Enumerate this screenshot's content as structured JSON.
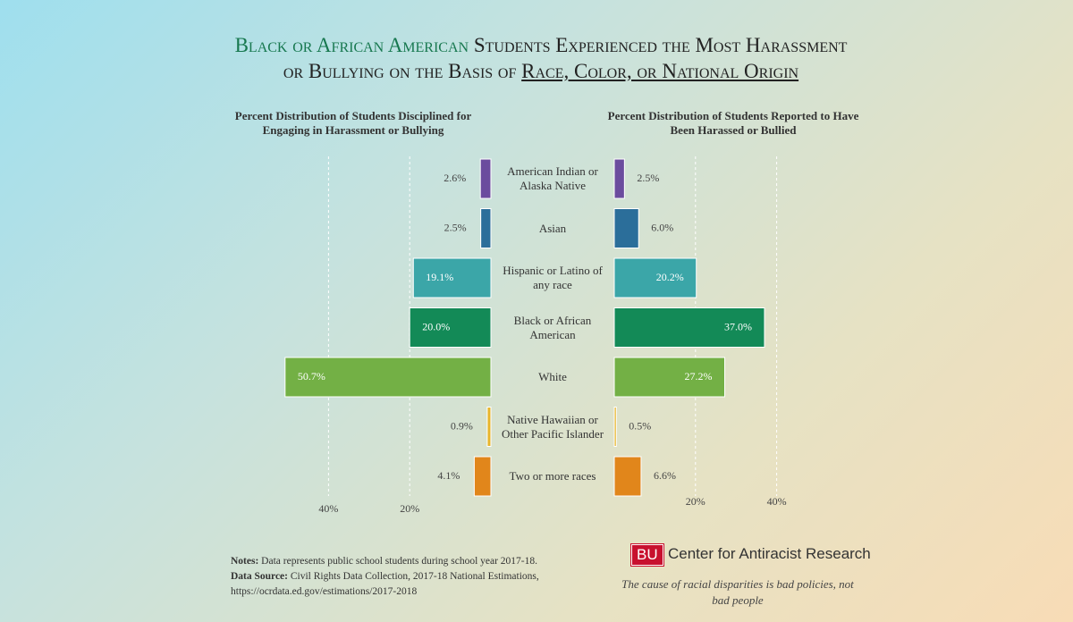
{
  "chart_data": {
    "type": "butterfly",
    "title": [
      "Black or African American",
      "Students Experienced the Most Harassment",
      "or Bullying on the Basis of",
      "Race, Color, or National Origin"
    ],
    "categories": [
      "American Indian or Alaska Native",
      "Asian",
      "Hispanic or Latino of any race",
      "Black or African American",
      "White",
      "Native Hawaiian or Other Pacific Islander",
      "Two or more races"
    ],
    "colors": [
      "#6b4c9e",
      "#2b6e9a",
      "#3ba6a8",
      "#138a57",
      "#73b045",
      "#e7b52c",
      "#e1861b"
    ],
    "grid": true,
    "series": [
      {
        "name": "Percent Distribution of Students Disciplined for Engaging in Harassment or Bullying",
        "values": [
          2.6,
          2.5,
          19.1,
          20.0,
          50.7,
          0.9,
          4.1
        ],
        "value_labels": [
          "2.6%",
          "2.5%",
          "19.1%",
          "20.0%",
          "50.7%",
          "0.9%",
          "4.1%"
        ],
        "xlim": [
          0,
          50
        ],
        "xticks": [
          {
            "value": 20,
            "label": "20%"
          },
          {
            "value": 40,
            "label": "40%"
          }
        ]
      },
      {
        "name": "Percent Distribution of Students Reported to Have Been Harassed or Bullied",
        "values": [
          2.5,
          6.0,
          20.2,
          37.0,
          27.2,
          0.5,
          6.6
        ],
        "value_labels": [
          "2.5%",
          "6.0%",
          "20.2%",
          "37.0%",
          "27.2%",
          "0.5%",
          "6.6%"
        ],
        "xlim": [
          0,
          50
        ],
        "xticks": [
          {
            "value": 20,
            "label": "20%"
          },
          {
            "value": 40,
            "label": "40%"
          }
        ]
      }
    ]
  },
  "footer": {
    "notes": {
      "label": "Notes:",
      "text": "Data represents public school students during school year 2017-18."
    },
    "source": {
      "label": "Data Source:",
      "text": "Civil Rights Data Collection, 2017-18 National Estimations, https://ocrdata.ed.gov/estimations/2017-2018"
    },
    "logo": "BU",
    "organization": "Center for Antiracist Research",
    "tagline": "The cause of racial disparities is bad policies, not bad people"
  }
}
